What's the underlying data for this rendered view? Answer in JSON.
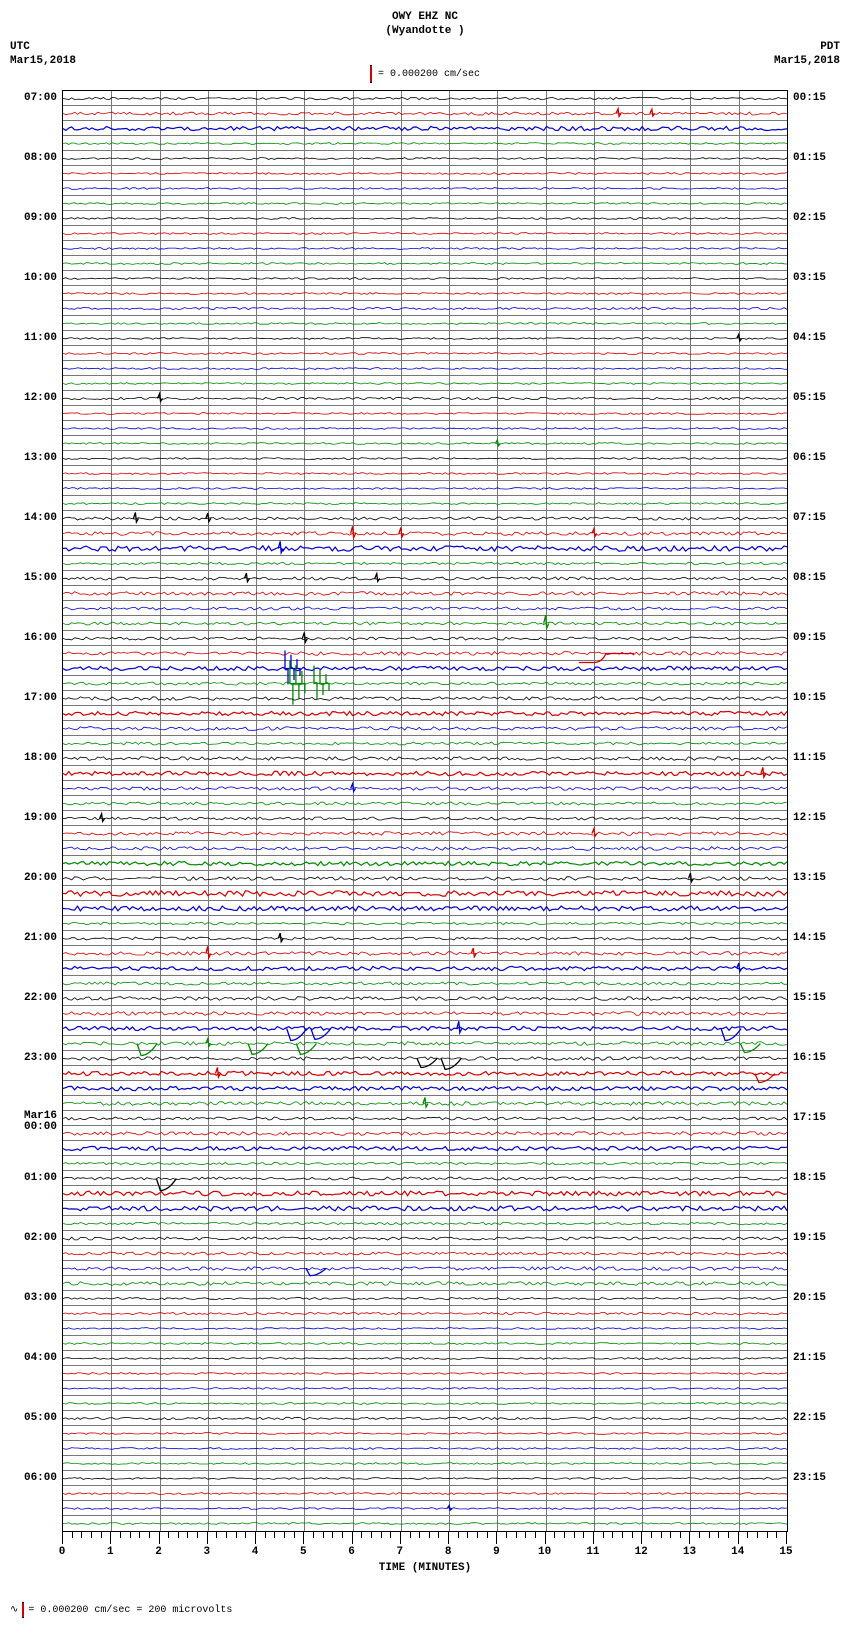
{
  "seismogram": {
    "station_line1": "OWY EHZ NC",
    "station_line2": "(Wyandotte )",
    "scale_text": "= 0.000200 cm/sec",
    "left_tz": "UTC",
    "left_date": "Mar15,2018",
    "right_tz": "PDT",
    "right_date": "Mar15,2018",
    "xaxis_title": "TIME (MINUTES)",
    "x_min": 0,
    "x_max": 15,
    "x_tick_major": 1,
    "x_tick_minor": 0.2,
    "footer_text": "= 0.000200 cm/sec =    200 microvolts",
    "colors": {
      "black": "#000000",
      "red": "#cc0000",
      "blue": "#0000cc",
      "green": "#008800",
      "grid": "#777777",
      "bg": "#ffffff"
    },
    "color_cycle": [
      "black",
      "red",
      "blue",
      "green"
    ],
    "rows": [
      {
        "left": "07:00",
        "right": "00:15",
        "colorIdx": 0,
        "amp": 0.4,
        "events": []
      },
      {
        "left": "",
        "right": "",
        "colorIdx": 1,
        "amp": 0.5,
        "events": [
          {
            "t": 11.5,
            "a": 0.8
          },
          {
            "t": 12.2,
            "a": 0.7
          }
        ]
      },
      {
        "left": "",
        "right": "",
        "colorIdx": 2,
        "amp": 0.7,
        "events": []
      },
      {
        "left": "",
        "right": "",
        "colorIdx": 3,
        "amp": 0.3,
        "events": []
      },
      {
        "left": "08:00",
        "right": "01:15",
        "colorIdx": 0,
        "amp": 0.3,
        "events": []
      },
      {
        "left": "",
        "right": "",
        "colorIdx": 1,
        "amp": 0.3,
        "events": []
      },
      {
        "left": "",
        "right": "",
        "colorIdx": 2,
        "amp": 0.3,
        "events": []
      },
      {
        "left": "",
        "right": "",
        "colorIdx": 3,
        "amp": 0.3,
        "events": []
      },
      {
        "left": "09:00",
        "right": "02:15",
        "colorIdx": 0,
        "amp": 0.3,
        "events": []
      },
      {
        "left": "",
        "right": "",
        "colorIdx": 1,
        "amp": 0.3,
        "events": []
      },
      {
        "left": "",
        "right": "",
        "colorIdx": 2,
        "amp": 0.3,
        "events": []
      },
      {
        "left": "",
        "right": "",
        "colorIdx": 3,
        "amp": 0.3,
        "events": []
      },
      {
        "left": "10:00",
        "right": "03:15",
        "colorIdx": 0,
        "amp": 0.3,
        "events": []
      },
      {
        "left": "",
        "right": "",
        "colorIdx": 1,
        "amp": 0.3,
        "events": []
      },
      {
        "left": "",
        "right": "",
        "colorIdx": 2,
        "amp": 0.4,
        "events": []
      },
      {
        "left": "",
        "right": "",
        "colorIdx": 3,
        "amp": 0.3,
        "events": []
      },
      {
        "left": "11:00",
        "right": "04:15",
        "colorIdx": 0,
        "amp": 0.3,
        "events": [
          {
            "t": 14,
            "a": 0.7
          }
        ]
      },
      {
        "left": "",
        "right": "",
        "colorIdx": 1,
        "amp": 0.3,
        "events": []
      },
      {
        "left": "",
        "right": "",
        "colorIdx": 2,
        "amp": 0.3,
        "events": []
      },
      {
        "left": "",
        "right": "",
        "colorIdx": 3,
        "amp": 0.3,
        "events": []
      },
      {
        "left": "12:00",
        "right": "05:15",
        "colorIdx": 0,
        "amp": 0.4,
        "events": [
          {
            "t": 2,
            "a": 0.8
          }
        ]
      },
      {
        "left": "",
        "right": "",
        "colorIdx": 1,
        "amp": 0.3,
        "events": []
      },
      {
        "left": "",
        "right": "",
        "colorIdx": 2,
        "amp": 0.3,
        "events": []
      },
      {
        "left": "",
        "right": "",
        "colorIdx": 3,
        "amp": 0.3,
        "events": [
          {
            "t": 9,
            "a": 0.6
          }
        ]
      },
      {
        "left": "13:00",
        "right": "06:15",
        "colorIdx": 0,
        "amp": 0.3,
        "events": []
      },
      {
        "left": "",
        "right": "",
        "colorIdx": 1,
        "amp": 0.3,
        "events": []
      },
      {
        "left": "",
        "right": "",
        "colorIdx": 2,
        "amp": 0.3,
        "events": []
      },
      {
        "left": "",
        "right": "",
        "colorIdx": 3,
        "amp": 0.3,
        "events": []
      },
      {
        "left": "14:00",
        "right": "07:15",
        "colorIdx": 0,
        "amp": 0.5,
        "events": [
          {
            "t": 1.5,
            "a": 1.0
          },
          {
            "t": 3,
            "a": 0.9
          }
        ]
      },
      {
        "left": "",
        "right": "",
        "colorIdx": 1,
        "amp": 0.6,
        "events": [
          {
            "t": 6,
            "a": 1.2
          },
          {
            "t": 7,
            "a": 1.0
          },
          {
            "t": 11,
            "a": 0.8
          }
        ]
      },
      {
        "left": "",
        "right": "",
        "colorIdx": 2,
        "amp": 0.9,
        "events": [
          {
            "t": 4.5,
            "a": 1.2
          }
        ]
      },
      {
        "left": "",
        "right": "",
        "colorIdx": 3,
        "amp": 0.4,
        "events": []
      },
      {
        "left": "15:00",
        "right": "08:15",
        "colorIdx": 0,
        "amp": 0.5,
        "events": [
          {
            "t": 3.8,
            "a": 0.9
          },
          {
            "t": 6.5,
            "a": 0.8
          }
        ]
      },
      {
        "left": "",
        "right": "",
        "colorIdx": 1,
        "amp": 0.6,
        "events": []
      },
      {
        "left": "",
        "right": "",
        "colorIdx": 2,
        "amp": 0.5,
        "events": []
      },
      {
        "left": "",
        "right": "",
        "colorIdx": 3,
        "amp": 0.5,
        "events": [
          {
            "t": 10,
            "a": 1.4
          }
        ]
      },
      {
        "left": "16:00",
        "right": "09:15",
        "colorIdx": 0,
        "amp": 0.5,
        "events": [
          {
            "t": 5,
            "a": 1.0
          }
        ]
      },
      {
        "left": "",
        "right": "",
        "colorIdx": 1,
        "amp": 0.6,
        "events": [
          {
            "t": 11,
            "a": 1.5,
            "shape": "step"
          }
        ]
      },
      {
        "left": "",
        "right": "",
        "colorIdx": 2,
        "amp": 0.7,
        "events": [
          {
            "t": 4.6,
            "a": 3.0,
            "shape": "burst"
          }
        ]
      },
      {
        "left": "",
        "right": "",
        "colorIdx": 3,
        "amp": 0.5,
        "events": [
          {
            "t": 4.7,
            "a": 4.0,
            "shape": "burst"
          },
          {
            "t": 5.2,
            "a": 3.0,
            "shape": "burst"
          }
        ]
      },
      {
        "left": "17:00",
        "right": "10:15",
        "colorIdx": 0,
        "amp": 0.6,
        "events": []
      },
      {
        "left": "",
        "right": "",
        "colorIdx": 1,
        "amp": 0.7,
        "events": []
      },
      {
        "left": "",
        "right": "",
        "colorIdx": 2,
        "amp": 0.6,
        "events": []
      },
      {
        "left": "",
        "right": "",
        "colorIdx": 3,
        "amp": 0.5,
        "events": []
      },
      {
        "left": "18:00",
        "right": "11:15",
        "colorIdx": 0,
        "amp": 0.6,
        "events": []
      },
      {
        "left": "",
        "right": "",
        "colorIdx": 1,
        "amp": 0.7,
        "events": [
          {
            "t": 14.5,
            "a": 1.0
          }
        ]
      },
      {
        "left": "",
        "right": "",
        "colorIdx": 2,
        "amp": 0.6,
        "events": [
          {
            "t": 6,
            "a": 0.8
          }
        ]
      },
      {
        "left": "",
        "right": "",
        "colorIdx": 3,
        "amp": 0.5,
        "events": []
      },
      {
        "left": "19:00",
        "right": "12:15",
        "colorIdx": 0,
        "amp": 0.5,
        "events": [
          {
            "t": 0.8,
            "a": 0.8
          }
        ]
      },
      {
        "left": "",
        "right": "",
        "colorIdx": 1,
        "amp": 0.6,
        "events": [
          {
            "t": 11,
            "a": 0.8
          }
        ]
      },
      {
        "left": "",
        "right": "",
        "colorIdx": 2,
        "amp": 0.6,
        "events": []
      },
      {
        "left": "",
        "right": "",
        "colorIdx": 3,
        "amp": 0.7,
        "events": []
      },
      {
        "left": "20:00",
        "right": "13:15",
        "colorIdx": 0,
        "amp": 0.6,
        "events": [
          {
            "t": 13,
            "a": 0.9
          }
        ]
      },
      {
        "left": "",
        "right": "",
        "colorIdx": 1,
        "amp": 0.9,
        "events": []
      },
      {
        "left": "",
        "right": "",
        "colorIdx": 2,
        "amp": 0.8,
        "events": []
      },
      {
        "left": "",
        "right": "",
        "colorIdx": 3,
        "amp": 0.4,
        "events": []
      },
      {
        "left": "21:00",
        "right": "14:15",
        "colorIdx": 0,
        "amp": 0.5,
        "events": [
          {
            "t": 4.5,
            "a": 0.9
          }
        ]
      },
      {
        "left": "",
        "right": "",
        "colorIdx": 1,
        "amp": 0.6,
        "events": [
          {
            "t": 3,
            "a": 1.2
          },
          {
            "t": 8.5,
            "a": 0.9
          }
        ]
      },
      {
        "left": "",
        "right": "",
        "colorIdx": 2,
        "amp": 0.7,
        "events": [
          {
            "t": 14,
            "a": 0.9
          }
        ]
      },
      {
        "left": "",
        "right": "",
        "colorIdx": 3,
        "amp": 0.5,
        "events": []
      },
      {
        "left": "22:00",
        "right": "15:15",
        "colorIdx": 0,
        "amp": 0.6,
        "events": []
      },
      {
        "left": "",
        "right": "",
        "colorIdx": 1,
        "amp": 0.6,
        "events": []
      },
      {
        "left": "",
        "right": "",
        "colorIdx": 2,
        "amp": 0.7,
        "events": [
          {
            "t": 4.8,
            "a": 2.0,
            "shape": "dip"
          },
          {
            "t": 5.3,
            "a": 1.8,
            "shape": "dip"
          },
          {
            "t": 8.2,
            "a": 1.2
          },
          {
            "t": 13.8,
            "a": 2.0,
            "shape": "dip"
          }
        ]
      },
      {
        "left": "",
        "right": "",
        "colorIdx": 3,
        "amp": 0.6,
        "events": [
          {
            "t": 1.7,
            "a": 2.0,
            "shape": "dip"
          },
          {
            "t": 3.0,
            "a": 0.8
          },
          {
            "t": 4.0,
            "a": 1.8,
            "shape": "dip"
          },
          {
            "t": 5.0,
            "a": 1.8,
            "shape": "dip"
          },
          {
            "t": 14.2,
            "a": 1.5,
            "shape": "dip"
          }
        ]
      },
      {
        "left": "23:00",
        "right": "16:15",
        "colorIdx": 0,
        "amp": 0.6,
        "events": [
          {
            "t": 7.5,
            "a": 1.5,
            "shape": "dip"
          },
          {
            "t": 8.0,
            "a": 1.8,
            "shape": "dip"
          }
        ]
      },
      {
        "left": "",
        "right": "",
        "colorIdx": 1,
        "amp": 0.7,
        "events": [
          {
            "t": 3.2,
            "a": 1.0
          },
          {
            "t": 14.5,
            "a": 1.5,
            "shape": "dip"
          }
        ]
      },
      {
        "left": "",
        "right": "",
        "colorIdx": 2,
        "amp": 0.7,
        "events": []
      },
      {
        "left": "",
        "right": "",
        "colorIdx": 3,
        "amp": 0.6,
        "events": [
          {
            "t": 7.5,
            "a": 1.0
          }
        ]
      },
      {
        "left": "Mar16 00:00",
        "right": "17:15",
        "colorIdx": 0,
        "amp": 0.5,
        "events": []
      },
      {
        "left": "",
        "right": "",
        "colorIdx": 1,
        "amp": 0.6,
        "events": []
      },
      {
        "left": "",
        "right": "",
        "colorIdx": 2,
        "amp": 0.7,
        "events": []
      },
      {
        "left": "",
        "right": "",
        "colorIdx": 3,
        "amp": 0.4,
        "events": []
      },
      {
        "left": "01:00",
        "right": "18:15",
        "colorIdx": 0,
        "amp": 0.5,
        "events": [
          {
            "t": 2.1,
            "a": 2.0,
            "shape": "dip"
          }
        ]
      },
      {
        "left": "",
        "right": "",
        "colorIdx": 1,
        "amp": 0.8,
        "events": []
      },
      {
        "left": "",
        "right": "",
        "colorIdx": 2,
        "amp": 0.8,
        "events": []
      },
      {
        "left": "",
        "right": "",
        "colorIdx": 3,
        "amp": 0.4,
        "events": []
      },
      {
        "left": "02:00",
        "right": "19:15",
        "colorIdx": 0,
        "amp": 0.5,
        "events": []
      },
      {
        "left": "",
        "right": "",
        "colorIdx": 1,
        "amp": 0.5,
        "events": []
      },
      {
        "left": "",
        "right": "",
        "colorIdx": 2,
        "amp": 0.6,
        "events": [
          {
            "t": 5.2,
            "a": 1.2,
            "shape": "dip"
          }
        ]
      },
      {
        "left": "",
        "right": "",
        "colorIdx": 3,
        "amp": 0.6,
        "events": []
      },
      {
        "left": "03:00",
        "right": "20:15",
        "colorIdx": 0,
        "amp": 0.4,
        "events": []
      },
      {
        "left": "",
        "right": "",
        "colorIdx": 1,
        "amp": 0.4,
        "events": []
      },
      {
        "left": "",
        "right": "",
        "colorIdx": 2,
        "amp": 0.3,
        "events": []
      },
      {
        "left": "",
        "right": "",
        "colorIdx": 3,
        "amp": 0.3,
        "events": []
      },
      {
        "left": "04:00",
        "right": "21:15",
        "colorIdx": 0,
        "amp": 0.3,
        "events": []
      },
      {
        "left": "",
        "right": "",
        "colorIdx": 1,
        "amp": 0.3,
        "events": []
      },
      {
        "left": "",
        "right": "",
        "colorIdx": 2,
        "amp": 0.3,
        "events": []
      },
      {
        "left": "",
        "right": "",
        "colorIdx": 3,
        "amp": 0.3,
        "events": []
      },
      {
        "left": "05:00",
        "right": "22:15",
        "colorIdx": 0,
        "amp": 0.4,
        "events": []
      },
      {
        "left": "",
        "right": "",
        "colorIdx": 1,
        "amp": 0.3,
        "events": []
      },
      {
        "left": "",
        "right": "",
        "colorIdx": 2,
        "amp": 0.3,
        "events": []
      },
      {
        "left": "",
        "right": "",
        "colorIdx": 3,
        "amp": 0.3,
        "events": []
      },
      {
        "left": "06:00",
        "right": "23:15",
        "colorIdx": 0,
        "amp": 0.3,
        "events": []
      },
      {
        "left": "",
        "right": "",
        "colorIdx": 1,
        "amp": 0.3,
        "events": []
      },
      {
        "left": "",
        "right": "",
        "colorIdx": 2,
        "amp": 0.3,
        "events": [
          {
            "t": 8,
            "a": 0.5
          }
        ]
      },
      {
        "left": "",
        "right": "",
        "colorIdx": 3,
        "amp": 0.3,
        "events": []
      }
    ]
  }
}
